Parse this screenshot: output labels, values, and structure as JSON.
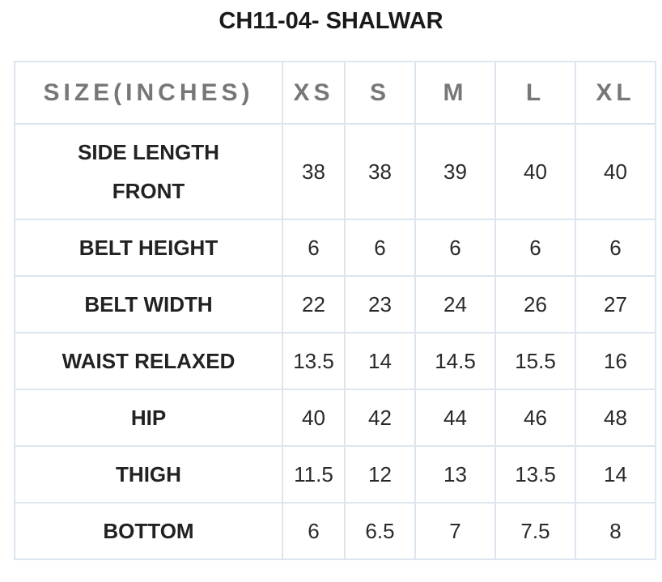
{
  "title": "CH11-04- SHALWAR",
  "table": {
    "header": [
      "SIZE(INCHES)",
      "XS",
      "S",
      "M",
      "L",
      "XL"
    ],
    "rows": [
      [
        "SIDE LENGTH FRONT",
        "38",
        "38",
        "39",
        "40",
        "40"
      ],
      [
        "BELT HEIGHT",
        "6",
        "6",
        "6",
        "6",
        "6"
      ],
      [
        "BELT WIDTH",
        "22",
        "23",
        "24",
        "26",
        "27"
      ],
      [
        "WAIST RELAXED",
        "13.5",
        "14",
        "14.5",
        "15.5",
        "16"
      ],
      [
        "HIP",
        "40",
        "42",
        "44",
        "46",
        "48"
      ],
      [
        "THIGH",
        "11.5",
        "12",
        "13",
        "13.5",
        "14"
      ],
      [
        "BOTTOM",
        "6",
        "6.5",
        "7",
        "7.5",
        "8"
      ]
    ]
  }
}
